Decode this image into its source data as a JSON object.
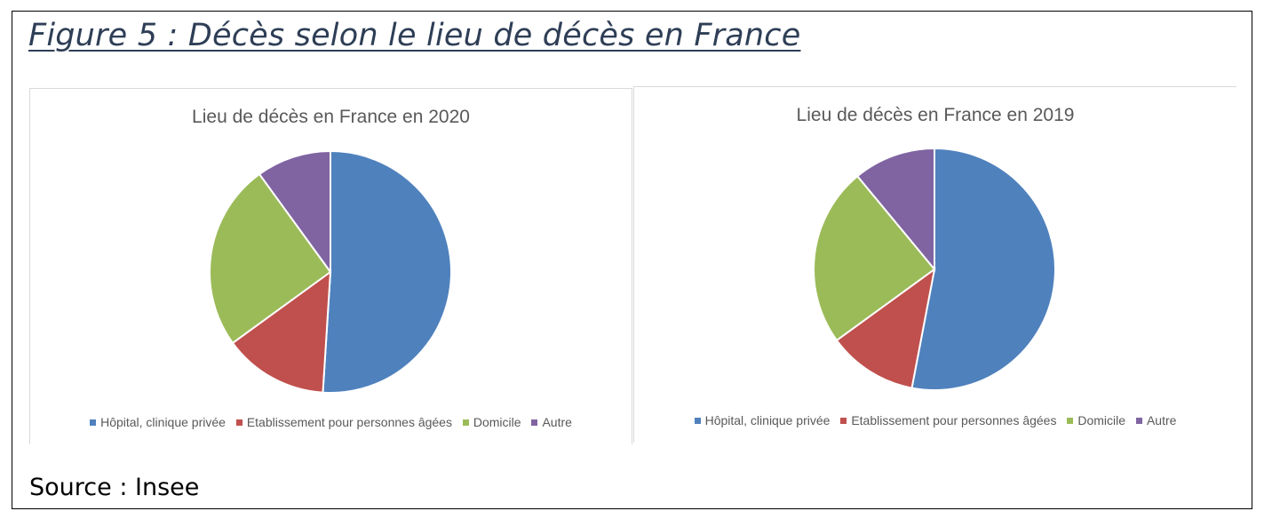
{
  "figure": {
    "title": "Figure 5 : Décès selon le lieu de décès en France",
    "source": "Source : Insee"
  },
  "colors": {
    "hopital": "#4f81bd",
    "etablissement": "#c0504d",
    "domicile": "#9bbb59",
    "autre": "#8064a2"
  },
  "chart_data": [
    {
      "type": "pie",
      "title": "Lieu de décès en France en 2020",
      "categories": [
        "Hôpital, clinique privée",
        "Etablissement pour personnes âgées",
        "Domicile",
        "Autre"
      ],
      "values": [
        51,
        14,
        25,
        10
      ],
      "colors": [
        "#4f81bd",
        "#c0504d",
        "#9bbb59",
        "#8064a2"
      ],
      "legend_position": "bottom"
    },
    {
      "type": "pie",
      "title": "Lieu de décès en France en 2019",
      "categories": [
        "Hôpital, clinique privée",
        "Etablissement pour personnes âgées",
        "Domicile",
        "Autre"
      ],
      "values": [
        53,
        12,
        24,
        11
      ],
      "colors": [
        "#4f81bd",
        "#c0504d",
        "#9bbb59",
        "#8064a2"
      ],
      "legend_position": "bottom"
    }
  ]
}
